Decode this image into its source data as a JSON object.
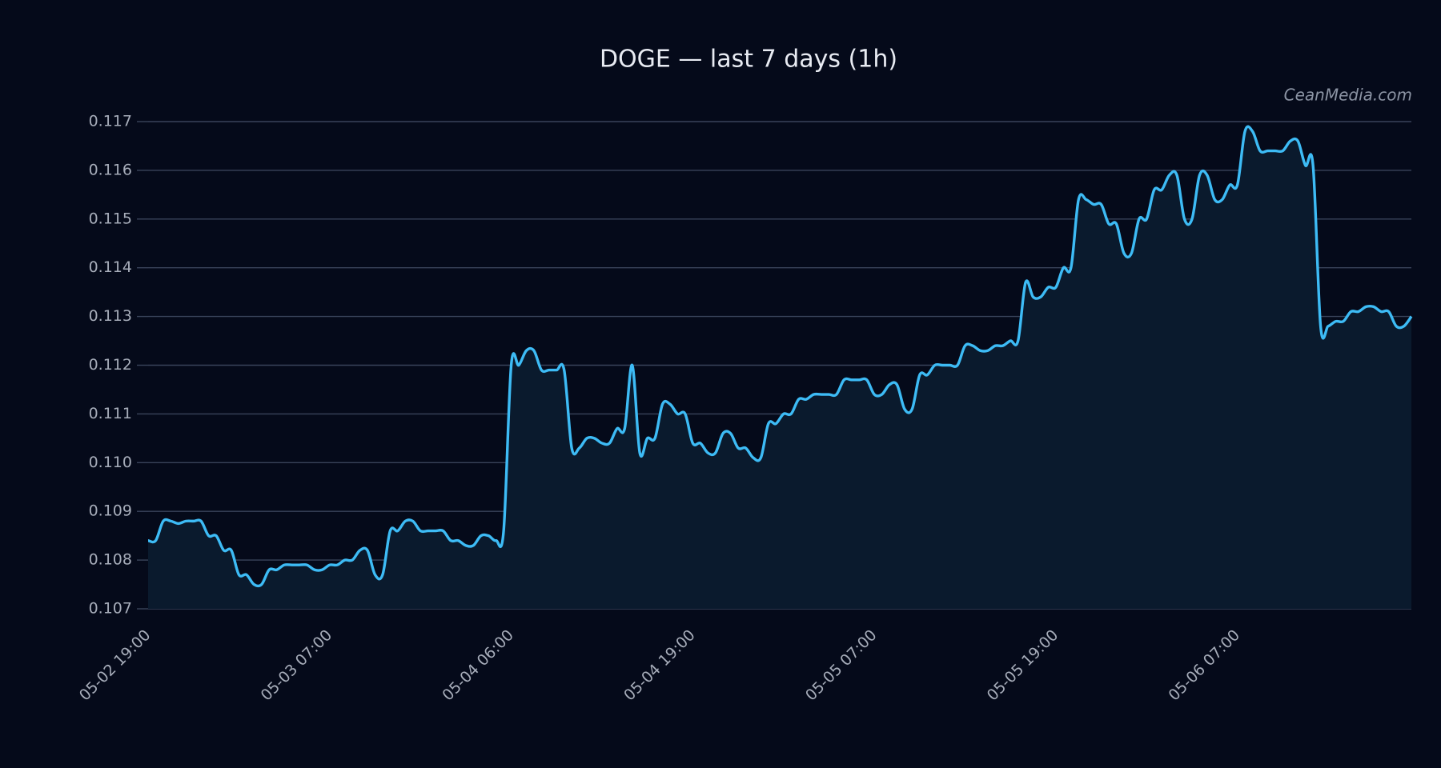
{
  "chart_data": {
    "type": "line",
    "title": "DOGE — last 7 days (1h)",
    "watermark": "CeanMedia.com",
    "categories": [
      "05-02 19:00",
      null,
      null,
      null,
      null,
      null,
      null,
      null,
      null,
      null,
      null,
      null,
      null,
      null,
      null,
      null,
      null,
      null,
      null,
      null,
      null,
      null,
      null,
      null,
      "05-03 07:00",
      null,
      null,
      null,
      null,
      null,
      null,
      null,
      null,
      null,
      null,
      null,
      null,
      null,
      null,
      null,
      null,
      null,
      null,
      null,
      null,
      null,
      null,
      null,
      "05-04 06:00",
      null,
      null,
      null,
      null,
      null,
      null,
      null,
      null,
      null,
      null,
      null,
      null,
      null,
      null,
      null,
      null,
      null,
      null,
      null,
      null,
      null,
      null,
      null,
      "05-04 19:00",
      null,
      null,
      null,
      null,
      null,
      null,
      null,
      null,
      null,
      null,
      null,
      null,
      null,
      null,
      null,
      null,
      null,
      null,
      null,
      null,
      null,
      null,
      null,
      "05-05 07:00",
      null,
      null,
      null,
      null,
      null,
      null,
      null,
      null,
      null,
      null,
      null,
      null,
      null,
      null,
      null,
      null,
      null,
      null,
      null,
      null,
      null,
      null,
      null,
      "05-05 19:00",
      null,
      null,
      null,
      null,
      null,
      null,
      null,
      null,
      null,
      null,
      null,
      null,
      null,
      null,
      null,
      null,
      null,
      null,
      null,
      null,
      null,
      null,
      null,
      "05-06 07:00",
      null,
      null,
      null,
      null,
      null,
      null,
      null,
      null,
      null,
      null,
      null,
      null,
      null,
      null,
      null,
      null,
      null,
      null,
      null,
      null,
      null,
      null,
      null
    ],
    "values": [
      0.1084,
      0.1084,
      0.1088,
      0.1088,
      0.10875,
      0.1088,
      0.1088,
      0.1088,
      0.1085,
      0.1085,
      0.1082,
      0.1082,
      0.1077,
      0.1077,
      0.1075,
      0.1075,
      0.1078,
      0.1078,
      0.1079,
      0.1079,
      0.1079,
      0.1079,
      0.1078,
      0.1078,
      0.1079,
      0.1079,
      0.108,
      0.108,
      0.1082,
      0.1082,
      0.1077,
      0.1077,
      0.1086,
      0.1086,
      0.1088,
      0.1088,
      0.1086,
      0.1086,
      0.1086,
      0.1086,
      0.1084,
      0.1084,
      0.1083,
      0.1083,
      0.1085,
      0.1085,
      0.1084,
      0.1086,
      0.112,
      0.112,
      0.1123,
      0.1123,
      0.1119,
      0.1119,
      0.1119,
      0.1119,
      0.1103,
      0.1103,
      0.1105,
      0.1105,
      0.1104,
      0.1104,
      0.1107,
      0.1107,
      0.112,
      0.1102,
      0.1105,
      0.1105,
      0.1112,
      0.1112,
      0.111,
      0.111,
      0.1104,
      0.1104,
      0.1102,
      0.1102,
      0.1106,
      0.1106,
      0.1103,
      0.1103,
      0.1101,
      0.1101,
      0.1108,
      0.1108,
      0.111,
      0.111,
      0.1113,
      0.1113,
      0.1114,
      0.1114,
      0.1114,
      0.1114,
      0.1117,
      0.1117,
      0.1117,
      0.1117,
      0.1114,
      0.1114,
      0.1116,
      0.1116,
      0.1111,
      0.1111,
      0.1118,
      0.1118,
      0.112,
      0.112,
      0.112,
      0.112,
      0.1124,
      0.1124,
      0.1123,
      0.1123,
      0.1124,
      0.1124,
      0.1125,
      0.1125,
      0.1137,
      0.1134,
      0.1134,
      0.1136,
      0.1136,
      0.114,
      0.114,
      0.1154,
      0.1154,
      0.1153,
      0.1153,
      0.1149,
      0.1149,
      0.1143,
      0.1143,
      0.115,
      0.115,
      0.1156,
      0.1156,
      0.1159,
      0.1159,
      0.115,
      0.115,
      0.1159,
      0.1159,
      0.1154,
      0.1154,
      0.1157,
      0.1157,
      0.1168,
      0.1168,
      0.1164,
      0.1164,
      0.1164,
      0.1164,
      0.1166,
      0.1166,
      0.1161,
      0.1161,
      0.1128,
      0.1128,
      0.1129,
      0.1129,
      0.1131,
      0.1131,
      0.1132,
      0.1132,
      0.1131,
      0.1131,
      0.1128,
      0.1128,
      0.113
    ],
    "color": "#3dbbf5",
    "area_color": "#0a1a2d",
    "ylim": [
      0.107,
      0.117
    ],
    "yticks": [
      0.107,
      0.108,
      0.109,
      {
        "value": 0.11,
        "label": "0.110"
      },
      0.111,
      0.112,
      0.113,
      0.114,
      0.115,
      0.116,
      0.117
    ],
    "grid": true
  }
}
